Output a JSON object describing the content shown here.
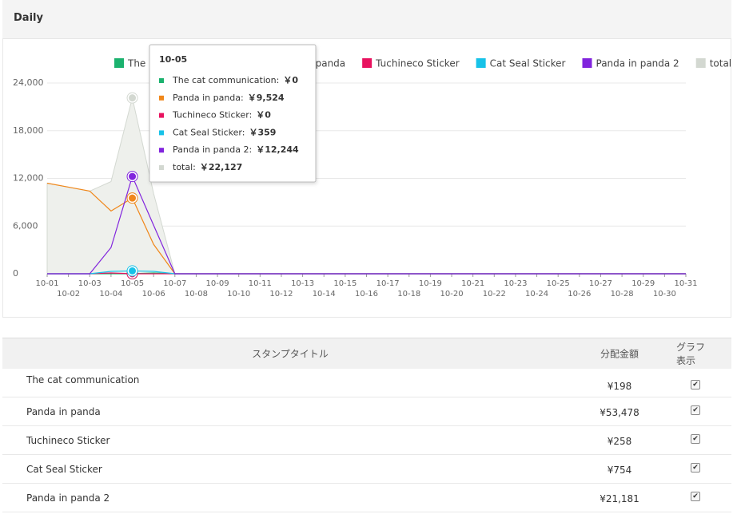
{
  "header": {
    "title": "Daily"
  },
  "chart_data": {
    "type": "line",
    "categories": [
      "10-01",
      "10-02",
      "10-03",
      "10-04",
      "10-05",
      "10-06",
      "10-07",
      "10-08",
      "10-09",
      "10-10",
      "10-11",
      "10-12",
      "10-13",
      "10-14",
      "10-15",
      "10-16",
      "10-17",
      "10-18",
      "10-19",
      "10-20",
      "10-21",
      "10-22",
      "10-23",
      "10-24",
      "10-25",
      "10-26",
      "10-27",
      "10-28",
      "10-29",
      "10-30",
      "10-31"
    ],
    "ylim": [
      0,
      24000
    ],
    "yticks": [
      0,
      {
        "value": 6000,
        "label": "6,000"
      },
      {
        "value": 12000,
        "label": "12,000"
      },
      {
        "value": 18000,
        "label": "18,000"
      },
      {
        "value": 24000,
        "label": "24,000"
      }
    ],
    "grid": true,
    "legend": "top",
    "series": [
      {
        "name": "The cat communication",
        "color": "#1bb26e",
        "values": [
          0,
          0,
          0,
          0,
          0,
          100,
          0,
          0,
          0,
          0,
          0,
          0,
          0,
          0,
          0,
          0,
          0,
          0,
          0,
          0,
          0,
          0,
          0,
          0,
          0,
          0,
          0,
          0,
          0,
          0,
          0
        ]
      },
      {
        "name": "Panda in panda",
        "color": "#f0871a",
        "values": [
          11400,
          10900,
          10400,
          7900,
          9524,
          3700,
          0,
          0,
          0,
          0,
          0,
          0,
          0,
          0,
          0,
          0,
          0,
          0,
          0,
          0,
          0,
          0,
          0,
          0,
          0,
          0,
          0,
          0,
          0,
          0,
          0
        ]
      },
      {
        "name": "Tuchineco Sticker",
        "color": "#e8125f",
        "values": [
          0,
          0,
          0,
          100,
          0,
          0,
          0,
          0,
          0,
          0,
          0,
          0,
          0,
          0,
          0,
          0,
          0,
          0,
          0,
          0,
          0,
          0,
          0,
          0,
          0,
          0,
          0,
          0,
          0,
          0,
          0
        ]
      },
      {
        "name": "Cat Seal Sticker",
        "color": "#17c2e8",
        "values": [
          0,
          0,
          0,
          300,
          359,
          300,
          0,
          0,
          0,
          0,
          0,
          0,
          0,
          0,
          0,
          0,
          0,
          0,
          0,
          0,
          0,
          0,
          0,
          0,
          0,
          0,
          0,
          0,
          0,
          0,
          0
        ]
      },
      {
        "name": "Panda in panda 2",
        "color": "#8124dd",
        "values": [
          0,
          0,
          0,
          3300,
          12244,
          6100,
          0,
          0,
          0,
          0,
          0,
          0,
          0,
          0,
          0,
          0,
          0,
          0,
          0,
          0,
          0,
          0,
          0,
          0,
          0,
          0,
          0,
          0,
          0,
          0,
          0
        ]
      },
      {
        "name": "total",
        "color": "#d3d8d1",
        "area": true,
        "values": [
          11400,
          10900,
          10400,
          11600,
          22127,
          10100,
          0,
          0,
          0,
          0,
          0,
          0,
          0,
          0,
          0,
          0,
          0,
          0,
          0,
          0,
          0,
          0,
          0,
          0,
          0,
          0,
          0,
          0,
          0,
          0,
          0
        ]
      }
    ],
    "tooltip": {
      "title": "10-05",
      "index": 4,
      "items": [
        {
          "label": "The cat communication:",
          "value": "￥0"
        },
        {
          "label": "Panda in panda:",
          "value": "￥9,524"
        },
        {
          "label": "Tuchineco Sticker:",
          "value": "￥0"
        },
        {
          "label": "Cat Seal Sticker:",
          "value": "￥359"
        },
        {
          "label": "Panda in panda 2:",
          "value": "￥12,244"
        },
        {
          "label": "total:",
          "value": "￥22,127"
        }
      ]
    }
  },
  "table": {
    "columns": [
      "スタンプタイトル",
      "分配金額",
      "グラフ表示"
    ],
    "rows": [
      [
        "The cat communication",
        "¥198"
      ],
      [
        "Panda in panda",
        "¥53,478"
      ],
      [
        "Tuchineco Sticker",
        "¥258"
      ],
      [
        "Cat Seal Sticker",
        "¥754"
      ],
      [
        "Panda in panda 2",
        "¥21,181"
      ]
    ]
  }
}
